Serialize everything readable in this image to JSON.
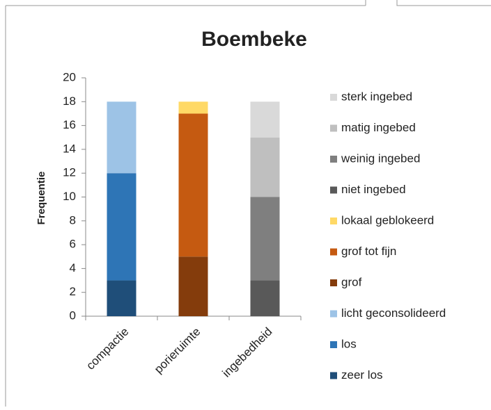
{
  "chart_data": {
    "type": "stacked_bar",
    "title": "Boembeke",
    "ylabel": "Frequentie",
    "categories": [
      "compactie",
      "porieruimte",
      "ingebedheid"
    ],
    "series": [
      {
        "name": "zeer los",
        "color": "#1f4e79",
        "values": [
          3,
          null,
          null
        ]
      },
      {
        "name": "los",
        "color": "#2e75b6",
        "values": [
          9,
          null,
          null
        ]
      },
      {
        "name": "licht geconsolideerd",
        "color": "#9dc3e6",
        "values": [
          6,
          null,
          null
        ]
      },
      {
        "name": "grof",
        "color": "#843c0c",
        "values": [
          null,
          5,
          null
        ]
      },
      {
        "name": "grof tot fijn",
        "color": "#c55a11",
        "values": [
          null,
          12,
          null
        ]
      },
      {
        "name": "lokaal geblokeerd",
        "color": "#ffd966",
        "values": [
          null,
          1,
          null
        ]
      },
      {
        "name": "niet ingebed",
        "color": "#595959",
        "values": [
          null,
          null,
          3
        ]
      },
      {
        "name": "weinig ingebed",
        "color": "#7f7f7f",
        "values": [
          null,
          null,
          7
        ]
      },
      {
        "name": "matig ingebed",
        "color": "#bfbfbf",
        "values": [
          null,
          null,
          5
        ]
      },
      {
        "name": "sterk ingebed",
        "color": "#d9d9d9",
        "values": [
          null,
          null,
          3
        ]
      }
    ],
    "ylim": [
      0,
      20
    ],
    "yticks": [
      0,
      2,
      4,
      6,
      8,
      10,
      12,
      14,
      16,
      18,
      20
    ],
    "grid": false,
    "legend": "right"
  }
}
